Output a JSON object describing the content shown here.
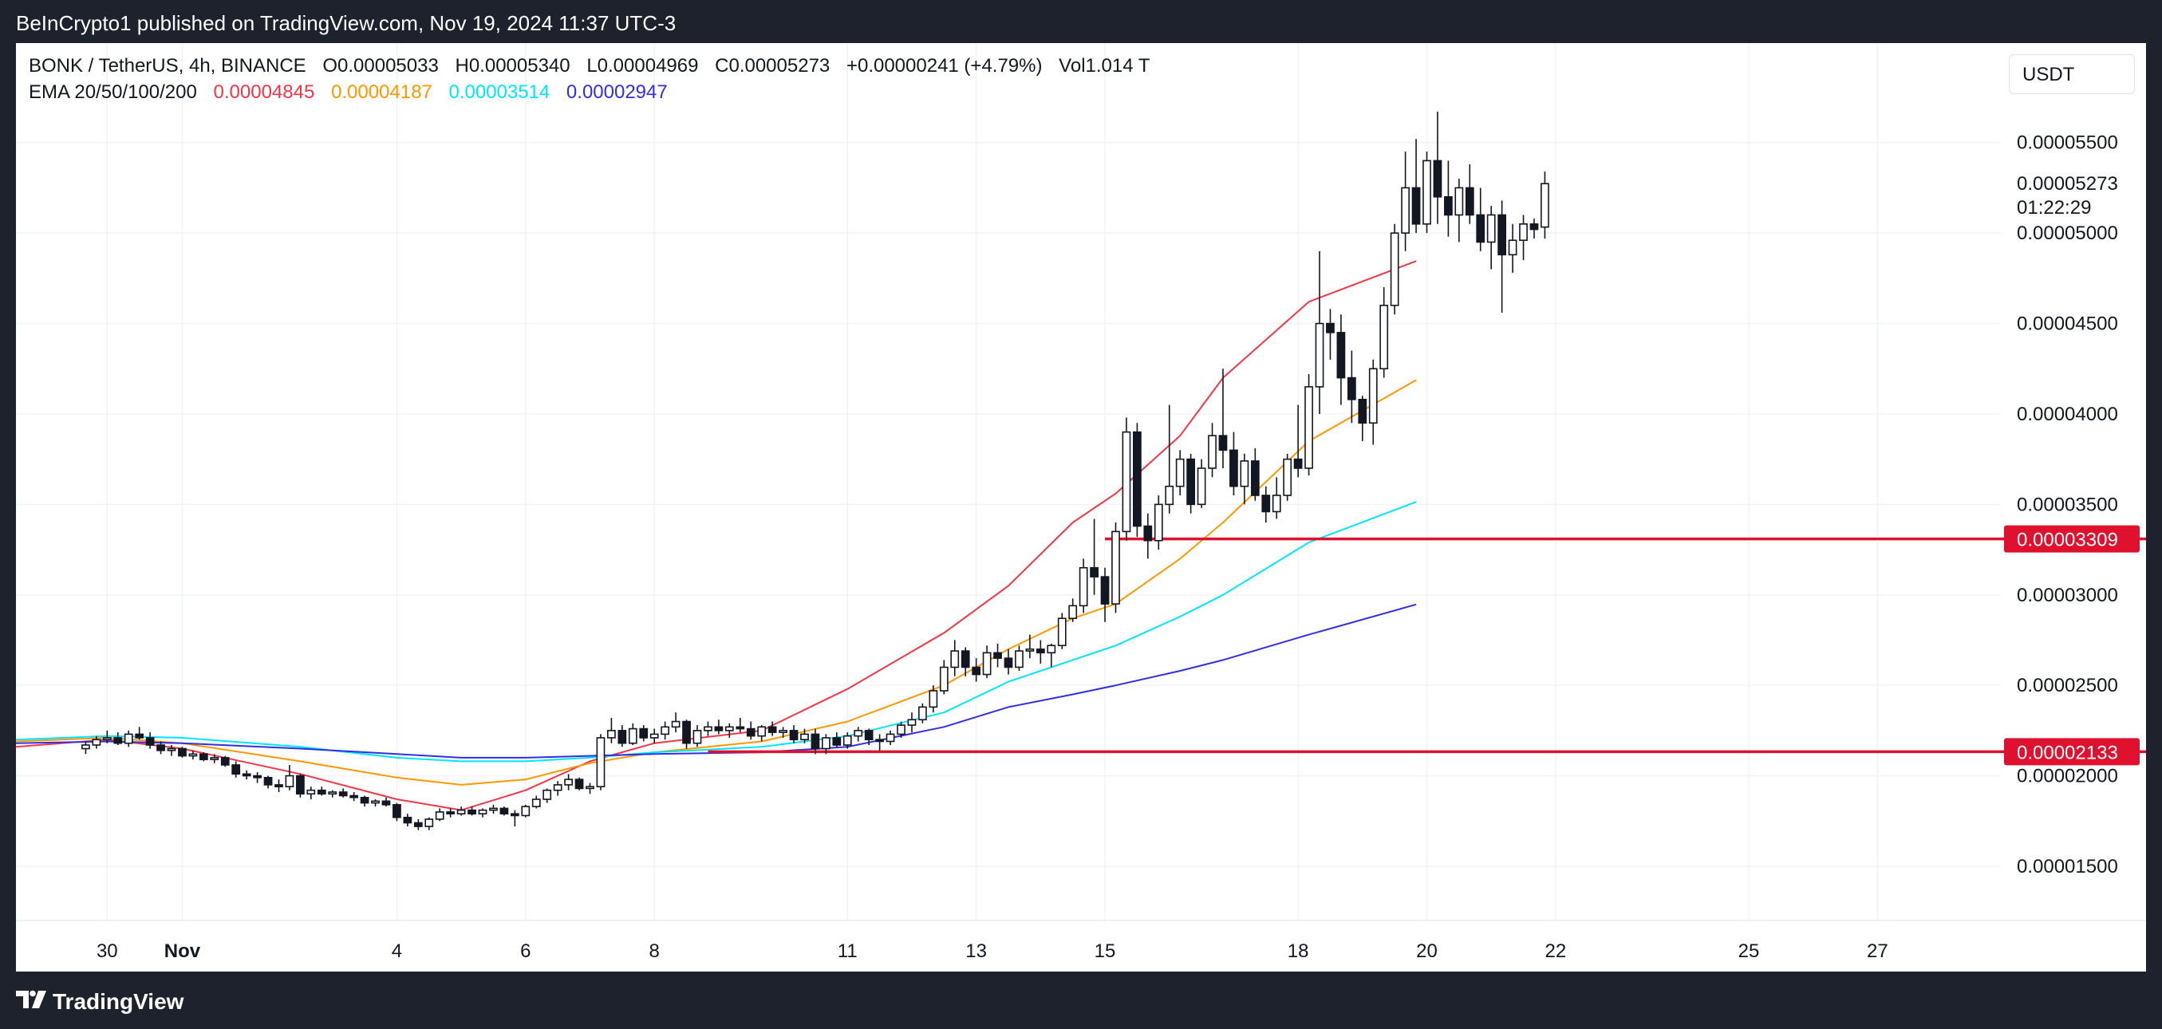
{
  "header": {
    "publisher": "BeInCrypto1 published on TradingView.com, Nov 19, 2024 11:37 UTC-3"
  },
  "legend": {
    "symbol": "BONK / TetherUS, 4h, BINANCE",
    "open": "O0.00005033",
    "high": "H0.00005340",
    "low": "L0.00004969",
    "close": "C0.00005273",
    "change": "+0.00000241 (+4.79%)",
    "volume": "Vol1.014 T",
    "ema_label": "EMA 20/50/100/200",
    "ema20": "0.00004845",
    "ema50": "0.00004187",
    "ema100": "0.00003514",
    "ema200": "0.00002947"
  },
  "currency_button": "USDT",
  "footer": {
    "brand": "TradingView"
  },
  "colors": {
    "ema20": "#f23645",
    "ema50": "#ff9800",
    "ema100": "#00e5ff",
    "ema200": "#2f2fe6",
    "hline": "#e0102f",
    "candle": "#131722"
  },
  "chart_data": {
    "type": "candlestick",
    "y_unit": "price (USDT)",
    "y_range": [
      1.2e-05,
      6.05e-05
    ],
    "y_ticks": [
      "0.00005500",
      "0.00005000",
      "0.00004500",
      "0.00004000",
      "0.00003500",
      "0.00003000",
      "0.00002500",
      "0.00002000",
      "0.00001500"
    ],
    "x_ticks": [
      {
        "label": "30",
        "t": 2
      },
      {
        "label": "Nov",
        "t": 9
      },
      {
        "label": "4",
        "t": 29
      },
      {
        "label": "6",
        "t": 41
      },
      {
        "label": "8",
        "t": 53
      },
      {
        "label": "11",
        "t": 71
      },
      {
        "label": "13",
        "t": 83
      },
      {
        "label": "15",
        "t": 95
      },
      {
        "label": "18",
        "t": 113
      },
      {
        "label": "20",
        "t": 125
      },
      {
        "label": "22",
        "t": 137
      },
      {
        "label": "25",
        "t": 155
      },
      {
        "label": "27",
        "t": 167
      }
    ],
    "x_range": [
      -6.5,
      178.5
    ],
    "price_tags": [
      {
        "value": "0.00005273",
        "y": 5.273e-05,
        "sub": "01:22:29",
        "style": "plain"
      },
      {
        "value": "0.00003309",
        "y": 3.309e-05,
        "style": "red"
      },
      {
        "value": "0.00002133",
        "y": 2.133e-05,
        "style": "red"
      }
    ],
    "hlines": [
      {
        "y": 3.309e-05,
        "from_t": 95
      },
      {
        "y": 2.133e-05,
        "from_t": 58
      }
    ],
    "candles": [
      [
        2.15e-05,
        2.19e-05,
        2.12e-05,
        2.17e-05
      ],
      [
        2.17e-05,
        2.22e-05,
        2.15e-05,
        2.2e-05
      ],
      [
        2.2e-05,
        2.25e-05,
        2.18e-05,
        2.21e-05
      ],
      [
        2.21e-05,
        2.24e-05,
        2.17e-05,
        2.18e-05
      ],
      [
        2.18e-05,
        2.25e-05,
        2.16e-05,
        2.23e-05
      ],
      [
        2.23e-05,
        2.27e-05,
        2.2e-05,
        2.21e-05
      ],
      [
        2.21e-05,
        2.24e-05,
        2.15e-05,
        2.17e-05
      ],
      [
        2.17e-05,
        2.19e-05,
        2.12e-05,
        2.14e-05
      ],
      [
        2.14e-05,
        2.17e-05,
        2.11e-05,
        2.15e-05
      ],
      [
        2.15e-05,
        2.16e-05,
        2.1e-05,
        2.11e-05
      ],
      [
        2.11e-05,
        2.14e-05,
        2.09e-05,
        2.12e-05
      ],
      [
        2.12e-05,
        2.13e-05,
        2.08e-05,
        2.09e-05
      ],
      [
        2.09e-05,
        2.12e-05,
        2.07e-05,
        2.1e-05
      ],
      [
        2.1e-05,
        2.11e-05,
        2.05e-05,
        2.06e-05
      ],
      [
        2.06e-05,
        2.08e-05,
        1.99e-05,
        2.01e-05
      ],
      [
        2.01e-05,
        2.03e-05,
        1.98e-05,
        2e-05
      ],
      [
        2e-05,
        2.02e-05,
        1.96e-05,
        1.99e-05
      ],
      [
        1.99e-05,
        2e-05,
        1.93e-05,
        1.95e-05
      ],
      [
        1.95e-05,
        1.98e-05,
        1.91e-05,
        1.94e-05
      ],
      [
        1.94e-05,
        2.06e-05,
        1.92e-05,
        2e-05
      ],
      [
        2e-05,
        2.01e-05,
        1.88e-05,
        1.9e-05
      ],
      [
        1.9e-05,
        1.94e-05,
        1.87e-05,
        1.92e-05
      ],
      [
        1.92e-05,
        1.94e-05,
        1.89e-05,
        1.9e-05
      ],
      [
        1.9e-05,
        1.92e-05,
        1.88e-05,
        1.91e-05
      ],
      [
        1.91e-05,
        1.93e-05,
        1.88e-05,
        1.89e-05
      ],
      [
        1.89e-05,
        1.91e-05,
        1.86e-05,
        1.88e-05
      ],
      [
        1.88e-05,
        1.89e-05,
        1.83e-05,
        1.85e-05
      ],
      [
        1.85e-05,
        1.87e-05,
        1.83e-05,
        1.86e-05
      ],
      [
        1.86e-05,
        1.88e-05,
        1.83e-05,
        1.84e-05
      ],
      [
        1.84e-05,
        1.85e-05,
        1.75e-05,
        1.77e-05
      ],
      [
        1.77e-05,
        1.79e-05,
        1.72e-05,
        1.74e-05
      ],
      [
        1.74e-05,
        1.76e-05,
        1.7e-05,
        1.72e-05
      ],
      [
        1.72e-05,
        1.77e-05,
        1.7e-05,
        1.76e-05
      ],
      [
        1.76e-05,
        1.82e-05,
        1.75e-05,
        1.8e-05
      ],
      [
        1.8e-05,
        1.82e-05,
        1.77e-05,
        1.79e-05
      ],
      [
        1.79e-05,
        1.83e-05,
        1.78e-05,
        1.81e-05
      ],
      [
        1.81e-05,
        1.83e-05,
        1.78e-05,
        1.79e-05
      ],
      [
        1.79e-05,
        1.82e-05,
        1.77e-05,
        1.81e-05
      ],
      [
        1.81e-05,
        1.84e-05,
        1.79e-05,
        1.82e-05
      ],
      [
        1.82e-05,
        1.83e-05,
        1.78e-05,
        1.79e-05
      ],
      [
        1.79e-05,
        1.81e-05,
        1.72e-05,
        1.78e-05
      ],
      [
        1.78e-05,
        1.84e-05,
        1.77e-05,
        1.83e-05
      ],
      [
        1.83e-05,
        1.89e-05,
        1.82e-05,
        1.87e-05
      ],
      [
        1.87e-05,
        1.93e-05,
        1.85e-05,
        1.92e-05
      ],
      [
        1.92e-05,
        1.97e-05,
        1.89e-05,
        1.95e-05
      ],
      [
        1.95e-05,
        2.01e-05,
        1.92e-05,
        1.98e-05
      ],
      [
        1.98e-05,
        1.99e-05,
        1.92e-05,
        1.93e-05
      ],
      [
        1.93e-05,
        1.96e-05,
        1.9e-05,
        1.94e-05
      ],
      [
        1.94e-05,
        2.23e-05,
        1.92e-05,
        2.21e-05
      ],
      [
        2.21e-05,
        2.32e-05,
        2.18e-05,
        2.25e-05
      ],
      [
        2.25e-05,
        2.28e-05,
        2.16e-05,
        2.18e-05
      ],
      [
        2.18e-05,
        2.29e-05,
        2.17e-05,
        2.26e-05
      ],
      [
        2.26e-05,
        2.28e-05,
        2.19e-05,
        2.21e-05
      ],
      [
        2.21e-05,
        2.26e-05,
        2.18e-05,
        2.23e-05
      ],
      [
        2.23e-05,
        2.3e-05,
        2.2e-05,
        2.27e-05
      ],
      [
        2.27e-05,
        2.35e-05,
        2.24e-05,
        2.3e-05
      ],
      [
        2.3e-05,
        2.31e-05,
        2.15e-05,
        2.18e-05
      ],
      [
        2.18e-05,
        2.28e-05,
        2.16e-05,
        2.25e-05
      ],
      [
        2.25e-05,
        2.3e-05,
        2.22e-05,
        2.27e-05
      ],
      [
        2.27e-05,
        2.31e-05,
        2.23e-05,
        2.25e-05
      ],
      [
        2.25e-05,
        2.29e-05,
        2.21e-05,
        2.27e-05
      ],
      [
        2.27e-05,
        2.32e-05,
        2.24e-05,
        2.26e-05
      ],
      [
        2.26e-05,
        2.3e-05,
        2.2e-05,
        2.22e-05
      ],
      [
        2.22e-05,
        2.28e-05,
        2.19e-05,
        2.27e-05
      ],
      [
        2.27e-05,
        2.3e-05,
        2.22e-05,
        2.24e-05
      ],
      [
        2.24e-05,
        2.27e-05,
        2.21e-05,
        2.25e-05
      ],
      [
        2.25e-05,
        2.28e-05,
        2.18e-05,
        2.2e-05
      ],
      [
        2.2e-05,
        2.26e-05,
        2.18e-05,
        2.23e-05
      ],
      [
        2.23e-05,
        2.26e-05,
        2.12e-05,
        2.15e-05
      ],
      [
        2.15e-05,
        2.23e-05,
        2.12e-05,
        2.21e-05
      ],
      [
        2.21e-05,
        2.24e-05,
        2.16e-05,
        2.17e-05
      ],
      [
        2.17e-05,
        2.24e-05,
        2.15e-05,
        2.22e-05
      ],
      [
        2.22e-05,
        2.27e-05,
        2.19e-05,
        2.25e-05
      ],
      [
        2.25e-05,
        2.26e-05,
        2.17e-05,
        2.2e-05
      ],
      [
        2.2e-05,
        2.23e-05,
        2.14e-05,
        2.19e-05
      ],
      [
        2.19e-05,
        2.25e-05,
        2.17e-05,
        2.23e-05
      ],
      [
        2.23e-05,
        2.3e-05,
        2.21e-05,
        2.28e-05
      ],
      [
        2.28e-05,
        2.35e-05,
        2.24e-05,
        2.31e-05
      ],
      [
        2.31e-05,
        2.4e-05,
        2.29e-05,
        2.38e-05
      ],
      [
        2.38e-05,
        2.5e-05,
        2.35e-05,
        2.47e-05
      ],
      [
        2.47e-05,
        2.64e-05,
        2.45e-05,
        2.6e-05
      ],
      [
        2.6e-05,
        2.75e-05,
        2.55e-05,
        2.69e-05
      ],
      [
        2.69e-05,
        2.71e-05,
        2.55e-05,
        2.6e-05
      ],
      [
        2.6e-05,
        2.65e-05,
        2.52e-05,
        2.56e-05
      ],
      [
        2.56e-05,
        2.72e-05,
        2.54e-05,
        2.68e-05
      ],
      [
        2.68e-05,
        2.73e-05,
        2.6e-05,
        2.65e-05
      ],
      [
        2.65e-05,
        2.7e-05,
        2.56e-05,
        2.6e-05
      ],
      [
        2.6e-05,
        2.72e-05,
        2.58e-05,
        2.69e-05
      ],
      [
        2.69e-05,
        2.78e-05,
        2.65e-05,
        2.7e-05
      ],
      [
        2.7e-05,
        2.75e-05,
        2.62e-05,
        2.68e-05
      ],
      [
        2.68e-05,
        2.73e-05,
        2.6e-05,
        2.72e-05
      ],
      [
        2.72e-05,
        2.9e-05,
        2.7e-05,
        2.87e-05
      ],
      [
        2.87e-05,
        2.98e-05,
        2.85e-05,
        2.94e-05
      ],
      [
        2.94e-05,
        3.2e-05,
        2.9e-05,
        3.15e-05
      ],
      [
        3.15e-05,
        3.42e-05,
        3e-05,
        3.1e-05
      ],
      [
        3.1e-05,
        3.15e-05,
        2.85e-05,
        2.95e-05
      ],
      [
        2.95e-05,
        3.4e-05,
        2.9e-05,
        3.35e-05
      ],
      [
        3.35e-05,
        3.98e-05,
        3.3e-05,
        3.9e-05
      ],
      [
        3.9e-05,
        3.95e-05,
        3.32e-05,
        3.38e-05
      ],
      [
        3.38e-05,
        3.45e-05,
        3.2e-05,
        3.3e-05
      ],
      [
        3.3e-05,
        3.55e-05,
        3.25e-05,
        3.5e-05
      ],
      [
        3.5e-05,
        4.05e-05,
        3.45e-05,
        3.6e-05
      ],
      [
        3.6e-05,
        3.8e-05,
        3.55e-05,
        3.75e-05
      ],
      [
        3.75e-05,
        3.78e-05,
        3.45e-05,
        3.5e-05
      ],
      [
        3.5e-05,
        3.75e-05,
        3.48e-05,
        3.7e-05
      ],
      [
        3.7e-05,
        3.95e-05,
        3.65e-05,
        3.88e-05
      ],
      [
        3.88e-05,
        4.25e-05,
        3.7e-05,
        3.8e-05
      ],
      [
        3.8e-05,
        3.9e-05,
        3.55e-05,
        3.6e-05
      ],
      [
        3.6e-05,
        3.78e-05,
        3.5e-05,
        3.74e-05
      ],
      [
        3.74e-05,
        3.81e-05,
        3.52e-05,
        3.55e-05
      ],
      [
        3.55e-05,
        3.6e-05,
        3.4e-05,
        3.46e-05
      ],
      [
        3.46e-05,
        3.65e-05,
        3.42e-05,
        3.55e-05
      ],
      [
        3.55e-05,
        3.78e-05,
        3.52e-05,
        3.75e-05
      ],
      [
        3.75e-05,
        4.05e-05,
        3.65e-05,
        3.7e-05
      ],
      [
        3.7e-05,
        4.22e-05,
        3.66e-05,
        4.15e-05
      ],
      [
        4.15e-05,
        4.9e-05,
        4e-05,
        4.5e-05
      ],
      [
        4.5e-05,
        4.58e-05,
        4.3e-05,
        4.45e-05
      ],
      [
        4.45e-05,
        4.55e-05,
        4.05e-05,
        4.2e-05
      ],
      [
        4.2e-05,
        4.35e-05,
        3.95e-05,
        4.08e-05
      ],
      [
        4.08e-05,
        4.1e-05,
        3.85e-05,
        3.95e-05
      ],
      [
        3.95e-05,
        4.3e-05,
        3.83e-05,
        4.25e-05
      ],
      [
        4.25e-05,
        4.7e-05,
        4.2e-05,
        4.6e-05
      ],
      [
        4.6e-05,
        5.05e-05,
        4.55e-05,
        5e-05
      ],
      [
        5e-05,
        5.45e-05,
        4.9e-05,
        5.25e-05
      ],
      [
        5.25e-05,
        5.52e-05,
        5e-05,
        5.05e-05
      ],
      [
        5.05e-05,
        5.45e-05,
        5e-05,
        5.4e-05
      ],
      [
        5.4e-05,
        5.67e-05,
        5.05e-05,
        5.2e-05
      ],
      [
        5.2e-05,
        5.4e-05,
        4.98e-05,
        5.1e-05
      ],
      [
        5.1e-05,
        5.3e-05,
        4.95e-05,
        5.25e-05
      ],
      [
        5.25e-05,
        5.38e-05,
        5.05e-05,
        5.1e-05
      ],
      [
        5.1e-05,
        5.25e-05,
        4.9e-05,
        4.95e-05
      ],
      [
        4.95e-05,
        5.15e-05,
        4.8e-05,
        5.1e-05
      ],
      [
        5.1e-05,
        5.18e-05,
        4.56e-05,
        4.88e-05
      ],
      [
        4.88e-05,
        5.05e-05,
        4.78e-05,
        4.96e-05
      ],
      [
        4.96e-05,
        5.1e-05,
        4.85e-05,
        5.05e-05
      ],
      [
        5.05e-05,
        5.08e-05,
        4.97e-05,
        5.02e-05
      ],
      [
        5.033e-05,
        5.34e-05,
        4.969e-05,
        5.273e-05
      ]
    ],
    "series": [
      {
        "name": "EMA 20",
        "color": "#f23645",
        "points": [
          [
            -6.5,
            2.16e-05
          ],
          [
            2,
            2.2e-05
          ],
          [
            9,
            2.15e-05
          ],
          [
            20,
            2.01e-05
          ],
          [
            29,
            1.87e-05
          ],
          [
            35,
            1.81e-05
          ],
          [
            41,
            1.92e-05
          ],
          [
            47,
            2.08e-05
          ],
          [
            53,
            2.18e-05
          ],
          [
            63,
            2.25e-05
          ],
          [
            71,
            2.48e-05
          ],
          [
            80,
            2.79e-05
          ],
          [
            86,
            3.05e-05
          ],
          [
            92,
            3.4e-05
          ],
          [
            96,
            3.56e-05
          ],
          [
            102,
            3.88e-05
          ],
          [
            106,
            4.2e-05
          ],
          [
            114,
            4.62e-05
          ],
          [
            124,
            4.845e-05
          ]
        ]
      },
      {
        "name": "EMA 50",
        "color": "#ff9800",
        "points": [
          [
            -6.5,
            2.19e-05
          ],
          [
            2,
            2.21e-05
          ],
          [
            9,
            2.18e-05
          ],
          [
            20,
            2.08e-05
          ],
          [
            29,
            1.99e-05
          ],
          [
            35,
            1.95e-05
          ],
          [
            41,
            1.98e-05
          ],
          [
            47,
            2.07e-05
          ],
          [
            53,
            2.13e-05
          ],
          [
            63,
            2.19e-05
          ],
          [
            71,
            2.3e-05
          ],
          [
            80,
            2.5e-05
          ],
          [
            86,
            2.7e-05
          ],
          [
            92,
            2.87e-05
          ],
          [
            96,
            2.95e-05
          ],
          [
            102,
            3.2e-05
          ],
          [
            106,
            3.4e-05
          ],
          [
            114,
            3.85e-05
          ],
          [
            124,
            4.187e-05
          ]
        ]
      },
      {
        "name": "EMA 100",
        "color": "#00e5ff",
        "points": [
          [
            -6.5,
            2.2e-05
          ],
          [
            2,
            2.22e-05
          ],
          [
            9,
            2.21e-05
          ],
          [
            20,
            2.16e-05
          ],
          [
            29,
            2.1e-05
          ],
          [
            35,
            2.08e-05
          ],
          [
            41,
            2.08e-05
          ],
          [
            47,
            2.1e-05
          ],
          [
            53,
            2.13e-05
          ],
          [
            63,
            2.16e-05
          ],
          [
            71,
            2.22e-05
          ],
          [
            80,
            2.35e-05
          ],
          [
            86,
            2.52e-05
          ],
          [
            92,
            2.64e-05
          ],
          [
            96,
            2.72e-05
          ],
          [
            102,
            2.88e-05
          ],
          [
            106,
            3e-05
          ],
          [
            114,
            3.29e-05
          ],
          [
            124,
            3.514e-05
          ]
        ]
      },
      {
        "name": "EMA 200",
        "color": "#2f2fe6",
        "points": [
          [
            -6.5,
            2.18e-05
          ],
          [
            2,
            2.19e-05
          ],
          [
            9,
            2.18e-05
          ],
          [
            20,
            2.15e-05
          ],
          [
            29,
            2.12e-05
          ],
          [
            35,
            2.1e-05
          ],
          [
            41,
            2.1e-05
          ],
          [
            47,
            2.11e-05
          ],
          [
            53,
            2.12e-05
          ],
          [
            63,
            2.13e-05
          ],
          [
            71,
            2.16e-05
          ],
          [
            80,
            2.27e-05
          ],
          [
            86,
            2.38e-05
          ],
          [
            92,
            2.45e-05
          ],
          [
            96,
            2.5e-05
          ],
          [
            102,
            2.58e-05
          ],
          [
            106,
            2.64e-05
          ],
          [
            114,
            2.78e-05
          ],
          [
            124,
            2.947e-05
          ]
        ]
      }
    ]
  }
}
